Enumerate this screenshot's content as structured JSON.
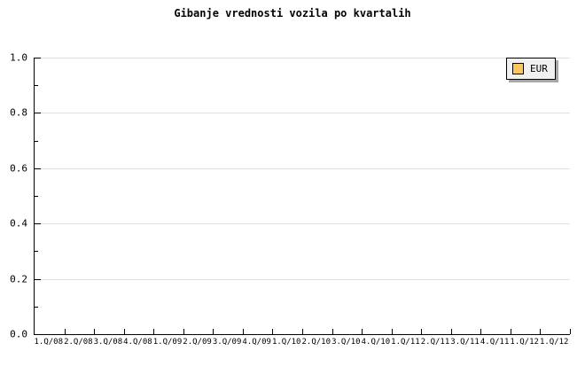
{
  "chart": {
    "title": "Gibanje vrednosti vozila po kvartalih"
  },
  "legend": {
    "items": [
      {
        "label": "EUR",
        "swatch_color": "#fbc55f"
      }
    ]
  },
  "colors": {
    "background": "#ffffff",
    "axis": "#000000",
    "grid": "#e0e0e0",
    "legend_background": "#f0f0f0",
    "legend_border": "#000000",
    "legend_shadow": "#a8a8a8",
    "swatch": "#fbc55f",
    "text": "#000000"
  },
  "chart_data": {
    "type": "line",
    "title": "Gibanje vrednosti vozila po kvartalih",
    "categories": [
      "1.Q/08",
      "2.Q/08",
      "3.Q/08",
      "4.Q/08",
      "1.Q/09",
      "2.Q/09",
      "3.Q/09",
      "4.Q/09",
      "1.Q/10",
      "2.Q/10",
      "3.Q/10",
      "4.Q/10",
      "1.Q/11",
      "2.Q/11",
      "3.Q/11",
      "4.Q/11",
      "1.Q/12",
      "1.Q/12"
    ],
    "series": [
      {
        "name": "EUR",
        "values": []
      }
    ],
    "xlabel": "",
    "ylabel": "",
    "ylim": [
      0.0,
      1.0
    ],
    "y_ticks": [
      0.0,
      0.2,
      0.4,
      0.6,
      0.8,
      1.0
    ],
    "y_minor_ticks": [
      0.1,
      0.3,
      0.5,
      0.7,
      0.9
    ],
    "y_tick_format_decimals": 1,
    "grid": true,
    "legend_position": "top-right",
    "plot_area_empty": true
  }
}
